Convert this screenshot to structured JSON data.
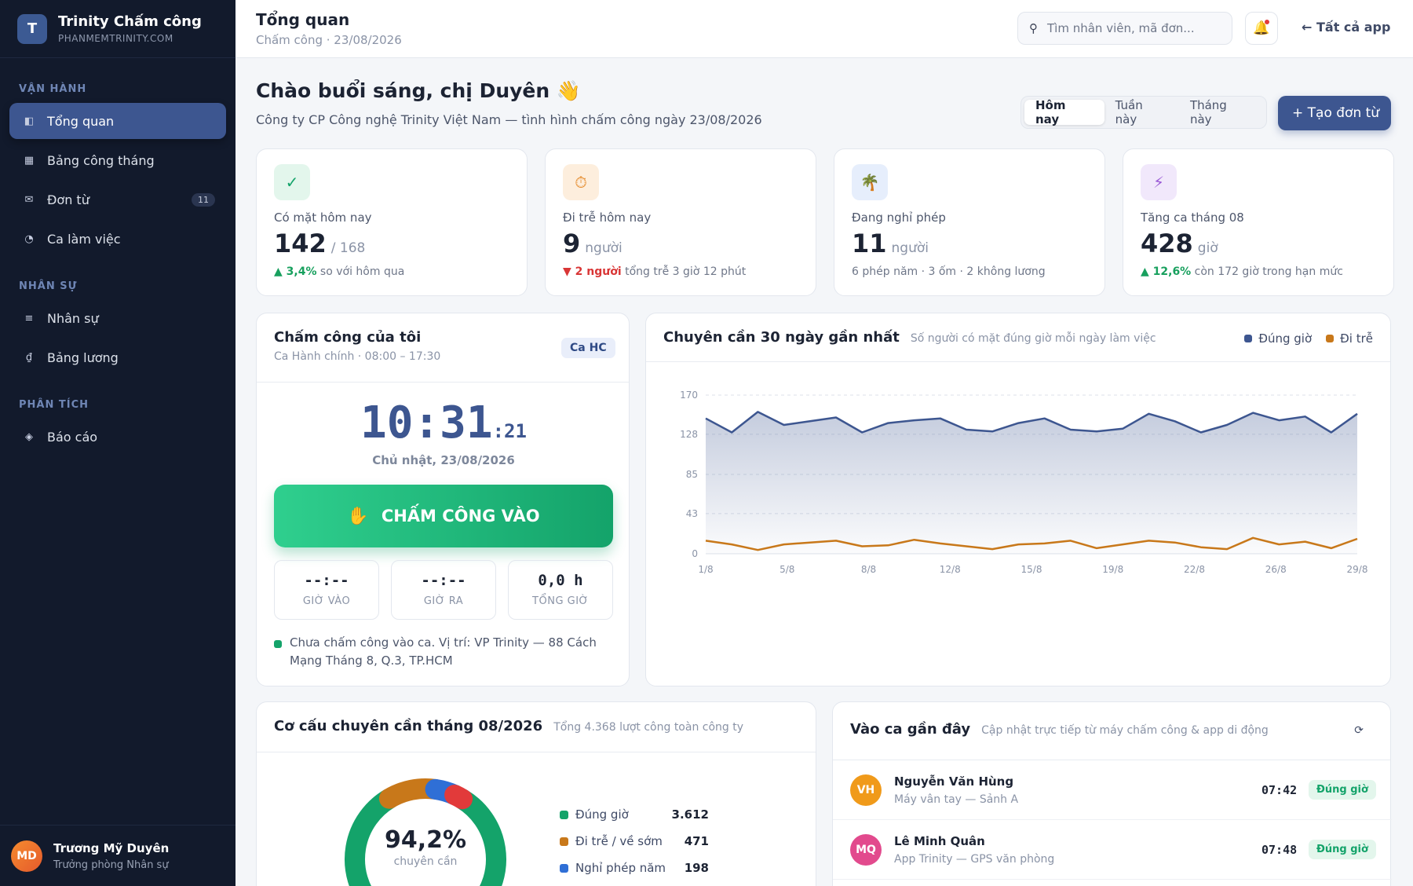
{
  "brand": {
    "logo": "T",
    "name": "Trinity Chấm công",
    "domain": "PHANMEMTRINITY.COM"
  },
  "sidebar": {
    "sections": [
      {
        "title": "VẬN HÀNH",
        "items": [
          {
            "label": "Tổng quan",
            "icon": "dashboard-icon",
            "glyph": "◧",
            "active": true
          },
          {
            "label": "Bảng công tháng",
            "icon": "table-icon",
            "glyph": "▦"
          },
          {
            "label": "Đơn từ",
            "icon": "mail-icon",
            "glyph": "✉",
            "badge": "11"
          },
          {
            "label": "Ca làm việc",
            "icon": "clock-icon",
            "glyph": "◔"
          }
        ]
      },
      {
        "title": "NHÂN SỰ",
        "items": [
          {
            "label": "Nhân sự",
            "icon": "list-icon",
            "glyph": "≡"
          },
          {
            "label": "Bảng lương",
            "icon": "dong-icon",
            "glyph": "₫"
          }
        ]
      },
      {
        "title": "PHÂN TÍCH",
        "items": [
          {
            "label": "Báo cáo",
            "icon": "diamond-icon",
            "glyph": "◈"
          }
        ]
      }
    ]
  },
  "user": {
    "initials": "MD",
    "name": "Trương Mỹ Duyên",
    "role": "Trưởng phòng Nhân sự"
  },
  "topbar": {
    "title": "Tổng quan",
    "subtitle": "Chấm công · 23/08/2026",
    "search_placeholder": "Tìm nhân viên, mã đơn...",
    "all_apps": "← Tất cả app"
  },
  "greeting": {
    "title": "Chào buổi sáng, chị Duyên 👋",
    "subtitle": "Công ty CP Công nghệ Trinity Việt Nam — tình hình chấm công ngày 23/08/2026"
  },
  "period_tabs": [
    "Hôm nay",
    "Tuần này",
    "Tháng này"
  ],
  "create_button": "+ Tạo đơn từ",
  "stats": [
    {
      "icon": "check-icon",
      "glyph": "✓",
      "icon_bg": "#e3f6ec",
      "icon_color": "#14a36a",
      "label": "Có mặt hôm nay",
      "value": "142",
      "unit": "/ 168",
      "delta": "▲ 3,4%",
      "trend": "up",
      "note": " so với hôm qua"
    },
    {
      "icon": "timer-icon",
      "glyph": "⏱",
      "icon_bg": "#fdeedd",
      "icon_color": "#e58a2a",
      "label": "Đi trễ hôm nay",
      "value": "9",
      "unit": "người",
      "delta": "▼ 2 người",
      "trend": "down",
      "note": " tổng trễ 3 giờ 12 phút"
    },
    {
      "icon": "palm-tree-icon",
      "glyph": "🌴",
      "icon_bg": "#e6eefc",
      "icon_color": "#2f6fd6",
      "label": "Đang nghỉ phép",
      "value": "11",
      "unit": "người",
      "delta": "",
      "trend": "none",
      "note": "6 phép năm · 3 ốm · 2 không lương"
    },
    {
      "icon": "bolt-icon",
      "glyph": "⚡",
      "icon_bg": "#f1e8fb",
      "icon_color": "#9b5bd6",
      "label": "Tăng ca tháng 08",
      "value": "428",
      "unit": "giờ",
      "delta": "▲ 12,6%",
      "trend": "up",
      "note": " còn 172 giờ trong hạn mức"
    }
  ],
  "my_attendance": {
    "title": "Chấm công của tôi",
    "subtitle": "Ca Hành chính · 08:00 – 17:30",
    "shift_badge": "Ca HC",
    "clock": "10:31",
    "clock_seconds": ":21",
    "date": "Chủ nhật, 23/08/2026",
    "checkin_label": "CHẤM CÔNG VÀO",
    "tiles": [
      {
        "value": "--:--",
        "label": "GIỜ VÀO"
      },
      {
        "value": "--:--",
        "label": "GIỜ RA"
      },
      {
        "value": "0,0 h",
        "label": "TỔNG GIỜ"
      }
    ],
    "location": "Chưa chấm công vào ca. Vị trí: VP Trinity — 88 Cách Mạng Tháng 8, Q.3, TP.HCM"
  },
  "chart_data": {
    "type": "area",
    "title": "Chuyên cần 30 ngày gần nhất",
    "subtitle": "Số người có mặt đúng giờ mỗi ngày làm việc",
    "x_ticks": [
      "1/8",
      "5/8",
      "8/8",
      "12/8",
      "15/8",
      "19/8",
      "22/8",
      "26/8",
      "29/8"
    ],
    "y_ticks": [
      0,
      43,
      85,
      128,
      170
    ],
    "ylim": [
      0,
      170
    ],
    "grid": true,
    "legend": "top-right",
    "series": [
      {
        "name": "Đúng giờ",
        "color": "#3d5690",
        "fill": true,
        "values": [
          145,
          130,
          152,
          138,
          142,
          146,
          130,
          140,
          143,
          145,
          133,
          131,
          140,
          145,
          133,
          131,
          134,
          150,
          142,
          130,
          138,
          151,
          143,
          147,
          130,
          150
        ]
      },
      {
        "name": "Đi trễ",
        "color": "#c8781a",
        "fill": false,
        "values": [
          14,
          10,
          4,
          10,
          12,
          14,
          8,
          9,
          15,
          11,
          8,
          5,
          10,
          11,
          14,
          6,
          10,
          14,
          12,
          7,
          5,
          17,
          10,
          13,
          6,
          16
        ]
      }
    ]
  },
  "structure": {
    "title": "Cơ cấu chuyên cần tháng 08/2026",
    "subtitle": "Tổng 4.368 lượt công toàn công ty",
    "percent": "94,2%",
    "percent_label": "chuyên cần",
    "rows": [
      {
        "label": "Đúng giờ",
        "value": "3.612",
        "color": "#14a36a"
      },
      {
        "label": "Đi trễ / về sớm",
        "value": "471",
        "color": "#c8781a"
      },
      {
        "label": "Nghỉ phép năm",
        "value": "198",
        "color": "#2f6fd6"
      }
    ]
  },
  "donut_data": {
    "type": "pie",
    "values": [
      3612,
      471,
      198,
      87
    ],
    "colors": [
      "#14a36a",
      "#c8781a",
      "#2f6fd6",
      "#e23a3a"
    ]
  },
  "recent": {
    "title": "Vào ca gần đây",
    "subtitle": "Cập nhật trực tiếp từ máy chấm công & app di động",
    "refresh_glyph": "⟳",
    "rows": [
      {
        "initials": "VH",
        "color": "#f09a1a",
        "name": "Nguyễn Văn Hùng",
        "source": "Máy vân tay — Sảnh A",
        "time": "07:42",
        "status": "Đúng giờ"
      },
      {
        "initials": "MQ",
        "color": "#e24a8d",
        "name": "Lê Minh Quân",
        "source": "App Trinity — GPS văn phòng",
        "time": "07:48",
        "status": "Đúng giờ"
      }
    ]
  }
}
